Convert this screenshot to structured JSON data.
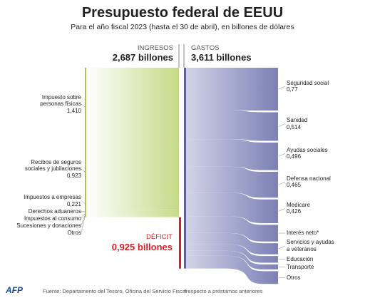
{
  "chart_data": {
    "type": "sankey",
    "title": "Presupuesto federal de EEUU",
    "subtitle": "Para el año fiscal 2023 (hasta el 30 de abril), en billones de dólares",
    "income": {
      "label": "INGRESOS",
      "total": {
        "value": 2.687,
        "label": "2,687 billones"
      },
      "color": "#c5da88",
      "categories": [
        "Impuesto sobre\npersonas físicas",
        "Recibos de seguros\nsociales y jubilaciones",
        "Impuestos a empresas",
        "Derechos aduaneros",
        "Impuestos al consumo",
        "Sucesiones y donaciones",
        "Otros"
      ],
      "values": [
        1.41,
        0.923,
        0.221,
        0.05,
        0.04,
        0.025,
        0.018
      ],
      "value_labels": [
        "1,410",
        "0,923",
        "0,221",
        null,
        null,
        null,
        null
      ]
    },
    "expenses": {
      "label": "GASTOS",
      "total": {
        "value": 3.611,
        "label": "3,611 billones"
      },
      "color": "#7b80b5",
      "categories": [
        "Seguridad social",
        "Sanidad",
        "Ayudas sociales",
        "Defensa nacional",
        "Medicare",
        "Interés neto*",
        "Servicios y ayudas\na veteranos",
        "Educación",
        "Transporte",
        "Otros"
      ],
      "values": [
        0.77,
        0.514,
        0.496,
        0.465,
        0.426,
        0.3,
        0.2,
        0.12,
        0.09,
        0.23
      ],
      "value_labels": [
        "0,77",
        "0,514",
        "0,496",
        "0,465",
        "0,426",
        null,
        null,
        null,
        null,
        null
      ]
    },
    "deficit": {
      "label": "DÉFICIT",
      "value": 0.925,
      "value_label": "0,925 billones",
      "color": "#d71f26"
    },
    "footer": {
      "logo": "AFP",
      "source": "Fuente: Departamento del Tesoro, Oficina del Servicio Fiscal",
      "note": "*respecto a préstamos anteriores"
    }
  }
}
